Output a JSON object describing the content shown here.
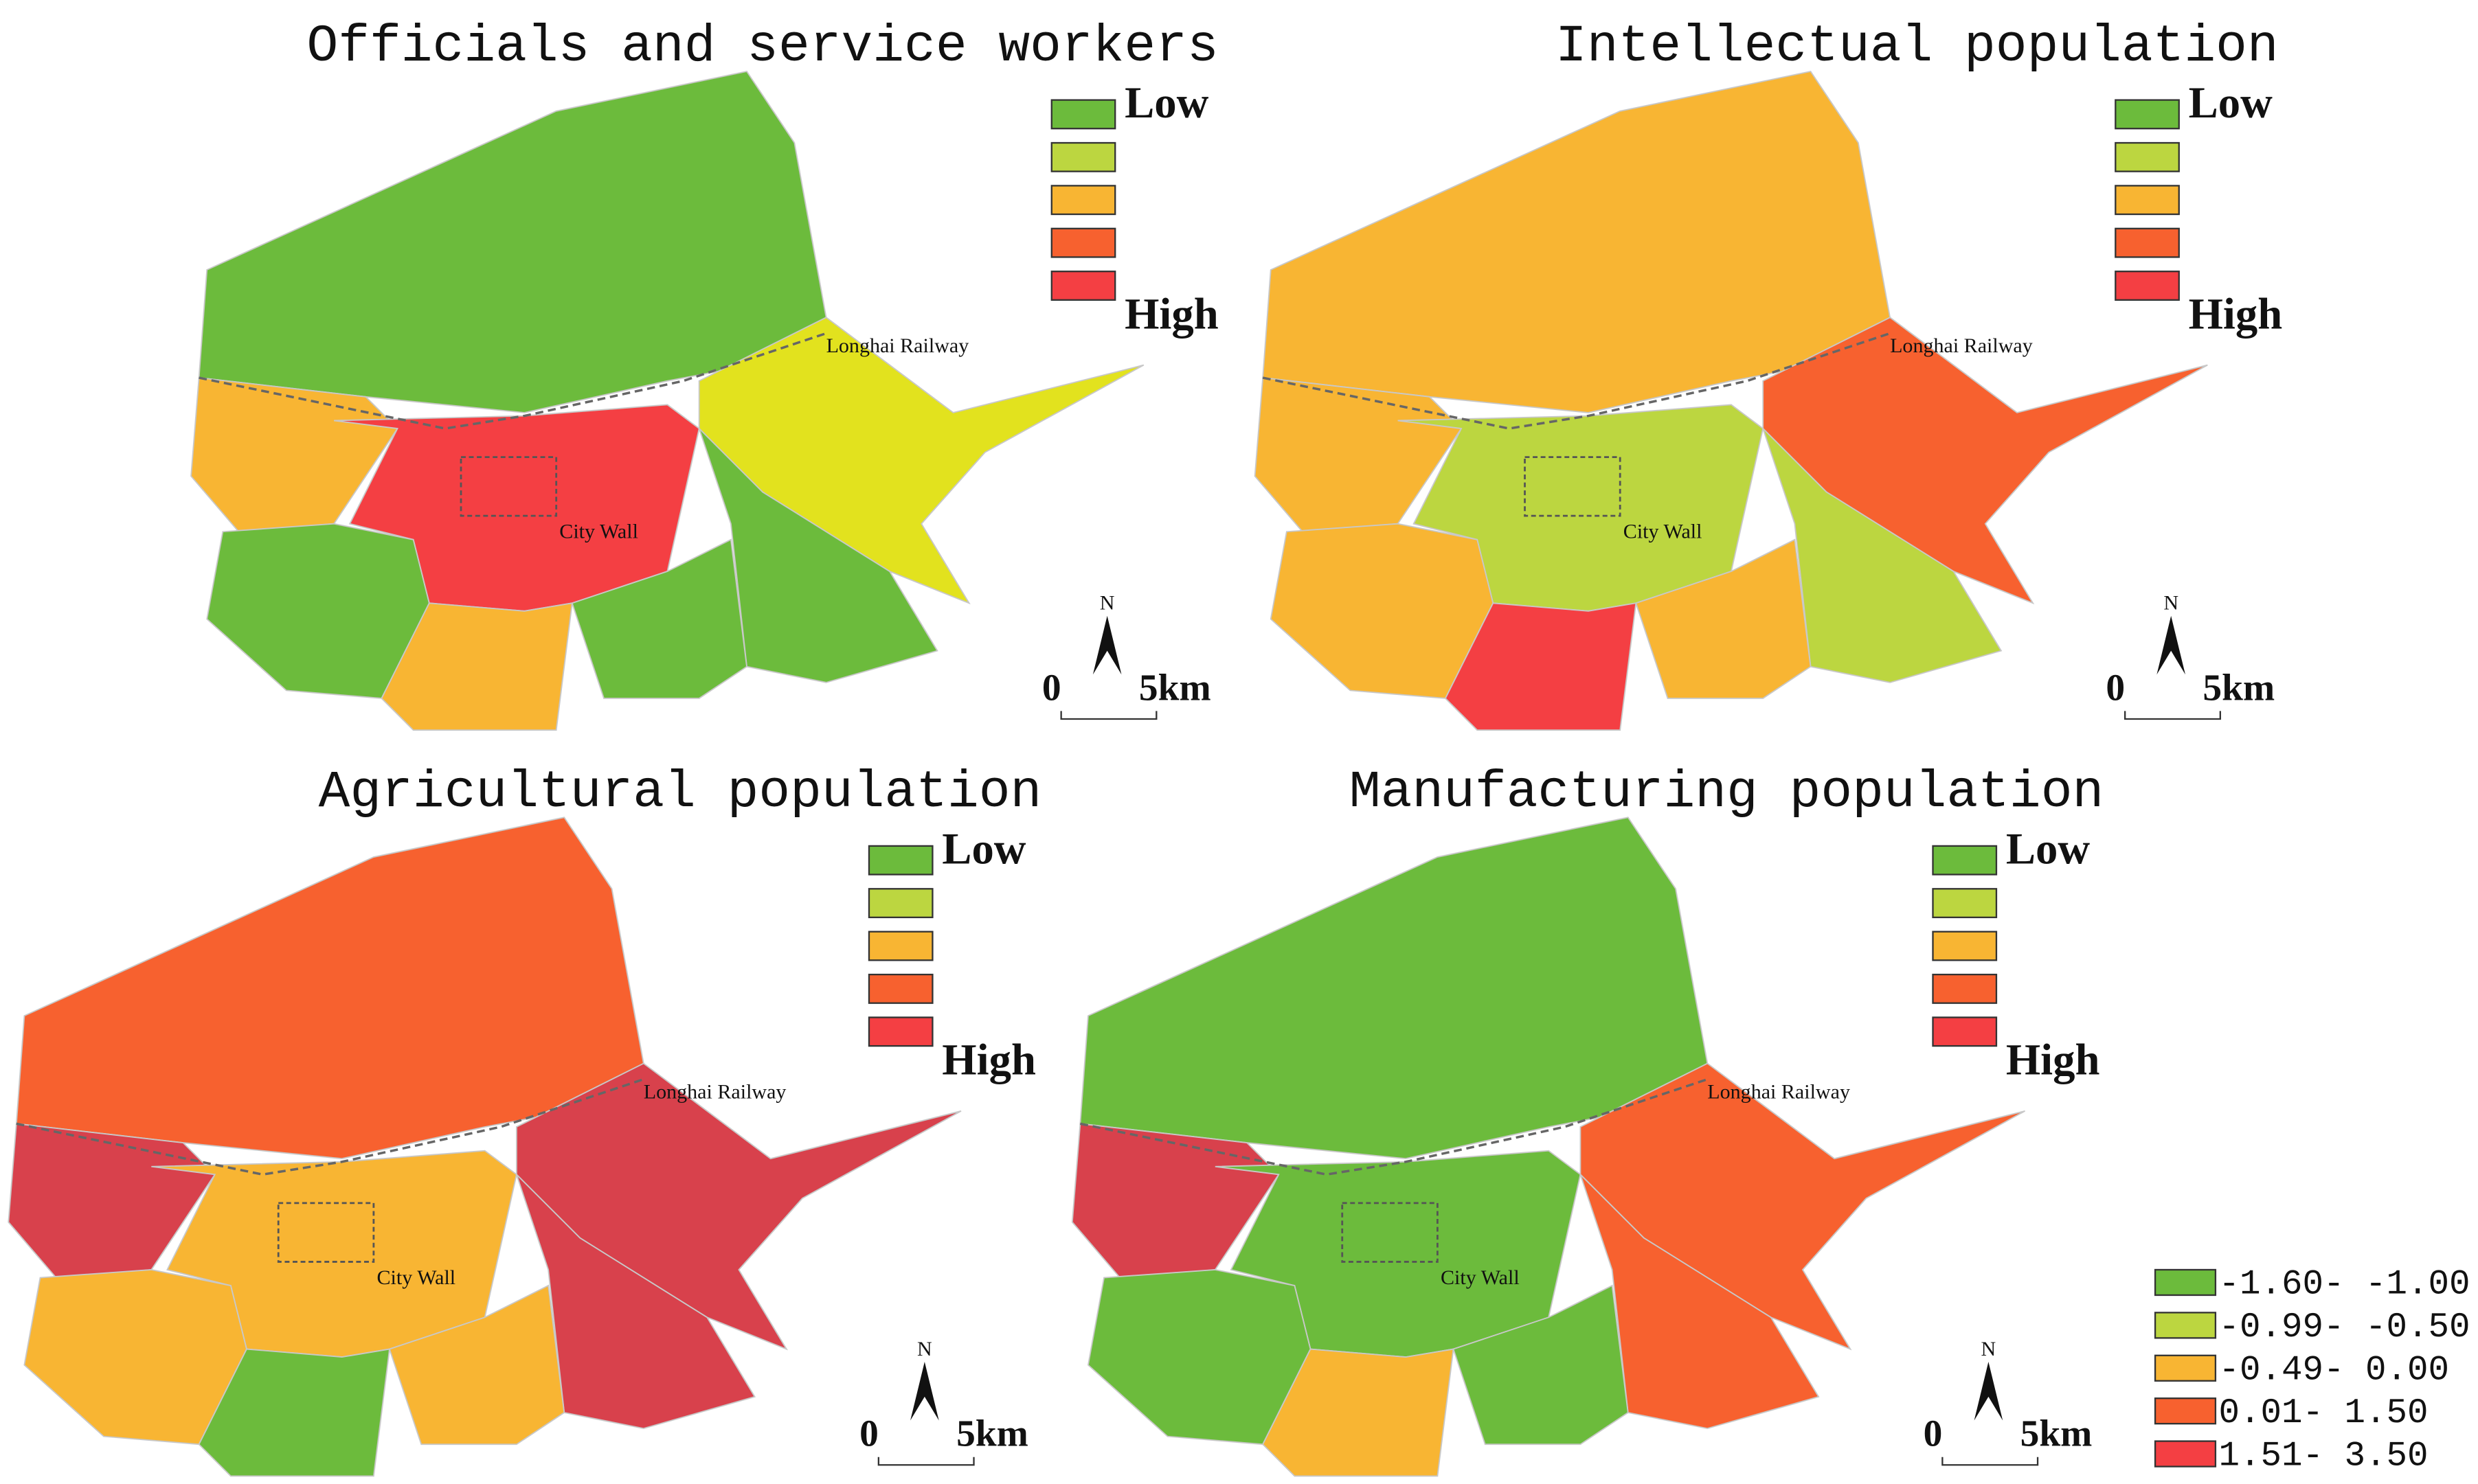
{
  "panels": [
    {
      "title": "Officials and service workers",
      "legend_low": "Low",
      "legend_high": "High",
      "railway_label": "Longhai Railway",
      "city_wall_label": "City Wall",
      "north": "N",
      "scale_zero": "0",
      "scale_length": "5km"
    },
    {
      "title": "Intellectual population",
      "legend_low": "Low",
      "legend_high": "High",
      "railway_label": "Longhai Railway",
      "city_wall_label": "City Wall",
      "north": "N",
      "scale_zero": "0",
      "scale_length": "5km"
    },
    {
      "title": "Agricultural population",
      "legend_low": "Low",
      "legend_high": "High",
      "railway_label": "Longhai Railway",
      "city_wall_label": "City Wall",
      "north": "N",
      "scale_zero": "0",
      "scale_length": "5km"
    },
    {
      "title": "Manufacturing population",
      "legend_low": "Low",
      "legend_high": "High",
      "railway_label": "Longhai Railway",
      "city_wall_label": "City Wall",
      "north": "N",
      "scale_zero": "0",
      "scale_length": "5km"
    }
  ],
  "legend": {
    "items": [
      "-1.60- -1.00",
      "-0.99- -0.50",
      "-0.49- 0.00",
      " 0.01- 1.50",
      " 1.51- 3.50"
    ]
  }
}
